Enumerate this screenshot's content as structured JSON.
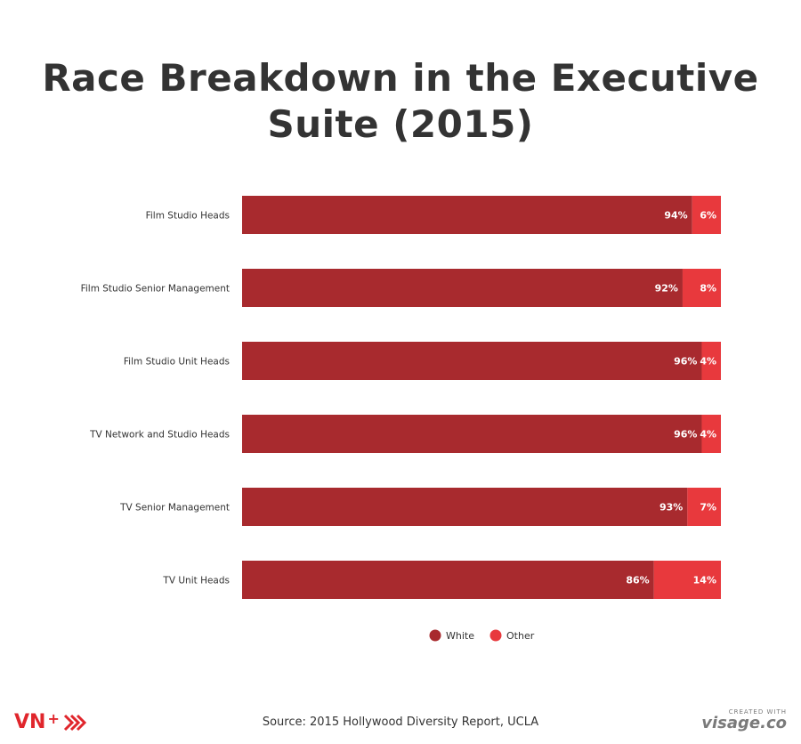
{
  "title_lines": [
    "Race Breakdown in the Executive",
    "Suite (2015)"
  ],
  "source": "Source: 2015 Hollywood Diversity Report, UCLA",
  "branding": {
    "left_logo": "VN",
    "left_logo_plus": "+",
    "right_small": "CREATED WITH",
    "right_big": "visage.co"
  },
  "colors": {
    "white_series": "#a82a2e",
    "other_series": "#e8393d",
    "title": "#333333",
    "logo": "#e0262c"
  },
  "chart_data": {
    "type": "bar",
    "orientation": "horizontal",
    "stacked": true,
    "categories": [
      "Film Studio Heads",
      "Film Studio Senior Management",
      "Film Studio Unit Heads",
      "TV Network and Studio Heads",
      "TV Senior Management",
      "TV Unit Heads"
    ],
    "series": [
      {
        "name": "White",
        "values": [
          94,
          92,
          96,
          96,
          93,
          86
        ],
        "labels": [
          "94%",
          "92%",
          "96%",
          "96%",
          "93%",
          "86%"
        ]
      },
      {
        "name": "Other",
        "values": [
          6,
          8,
          4,
          4,
          7,
          14
        ],
        "labels": [
          "6%",
          "8%",
          "4%",
          "4%",
          "7%",
          "14%"
        ]
      }
    ],
    "xlim": [
      0,
      100
    ],
    "grid": false,
    "legend_position": "bottom"
  }
}
